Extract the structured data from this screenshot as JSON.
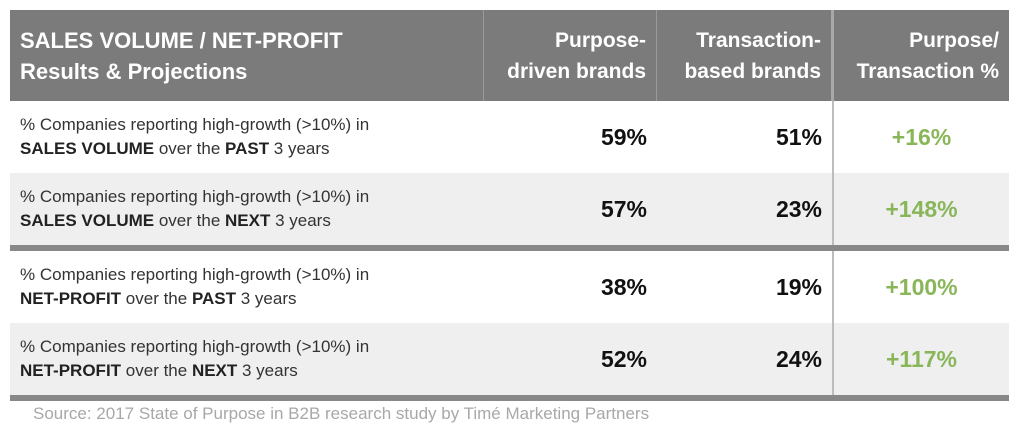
{
  "header": {
    "title_line1": "SALES VOLUME / NET-PROFIT",
    "title_line2": "Results & Projections",
    "col1_line1": "Purpose-",
    "col1_line2": "driven brands",
    "col2_line1": "Transaction-",
    "col2_line2": "based brands",
    "col3_line1": "Purpose/",
    "col3_line2": "Transaction %"
  },
  "chart_data": {
    "type": "table",
    "columns": [
      "Purpose-driven brands",
      "Transaction-based brands",
      "Purpose/Transaction %"
    ],
    "rows": [
      {
        "desc_line1": "% Companies reporting high-growth (>10%) in",
        "metric": "SALES VOLUME",
        "mid": " over the ",
        "period": "PAST",
        "tail": " 3 years",
        "purpose": "59%",
        "transaction": "51%",
        "ratio": "+16%"
      },
      {
        "desc_line1": "% Companies reporting high-growth (>10%) in",
        "metric": "SALES VOLUME",
        "mid": " over the ",
        "period": "NEXT",
        "tail": " 3 years",
        "purpose": "57%",
        "transaction": "23%",
        "ratio": "+148%"
      },
      {
        "desc_line1": "% Companies reporting high-growth (>10%) in",
        "metric": "NET-PROFIT",
        "mid": " over the ",
        "period": "PAST",
        "tail": " 3 years",
        "purpose": "38%",
        "transaction": "19%",
        "ratio": "+100%"
      },
      {
        "desc_line1": "% Companies reporting high-growth (>10%) in",
        "metric": "NET-PROFIT",
        "mid": " over the ",
        "period": "NEXT",
        "tail": " 3 years",
        "purpose": "52%",
        "transaction": "24%",
        "ratio": "+117%"
      }
    ]
  },
  "source": "Source: 2017 State of Purpose in B2B research study by Timé Marketing Partners",
  "colors": {
    "header_bg": "#7b7b7b",
    "alt_row_bg": "#efefef",
    "positive_green": "#8ab65a",
    "separator": "#888888"
  }
}
